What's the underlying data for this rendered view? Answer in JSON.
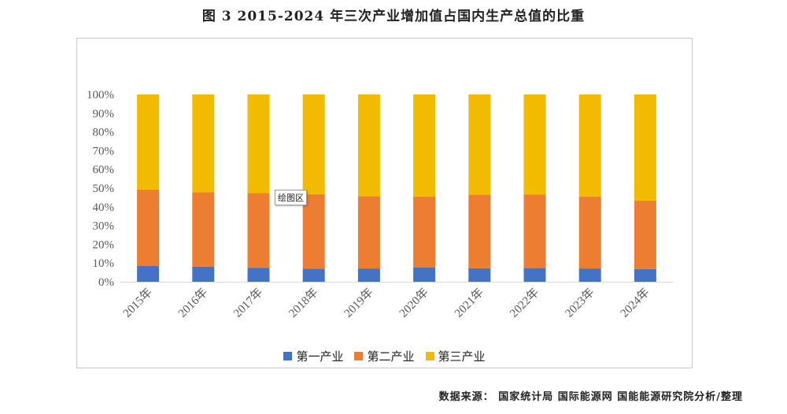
{
  "title": "图 3 2015-2024 年三次产业增加值占国内生产总值的比重",
  "tooltip": "绘图区",
  "source": "数据来源： 国家统计局 国际能源网 国能能源研究院分析/整理",
  "chart_data": {
    "type": "bar",
    "stacked": true,
    "categories": [
      "2015年",
      "2016年",
      "2017年",
      "2018年",
      "2019年",
      "2020年",
      "2021年",
      "2022年",
      "2023年",
      "2024年"
    ],
    "series": [
      {
        "name": "第一产业",
        "color": "#4472c4",
        "values": [
          8.4,
          8.1,
          7.5,
          7.0,
          7.1,
          7.7,
          7.2,
          7.3,
          7.1,
          6.8
        ]
      },
      {
        "name": "第二产业",
        "color": "#ed7d31",
        "values": [
          40.8,
          39.6,
          39.9,
          39.7,
          38.6,
          37.8,
          39.3,
          39.3,
          38.3,
          36.5
        ]
      },
      {
        "name": "第三产业",
        "color": "#f2bb00",
        "values": [
          50.8,
          52.3,
          52.6,
          53.3,
          54.3,
          54.5,
          53.5,
          53.4,
          54.6,
          56.7
        ]
      }
    ],
    "yticks": [
      "0%",
      "10%",
      "20%",
      "30%",
      "40%",
      "50%",
      "60%",
      "70%",
      "80%",
      "90%",
      "100%"
    ],
    "ylim": [
      0,
      100
    ],
    "legend": "bottom",
    "grid": false
  }
}
